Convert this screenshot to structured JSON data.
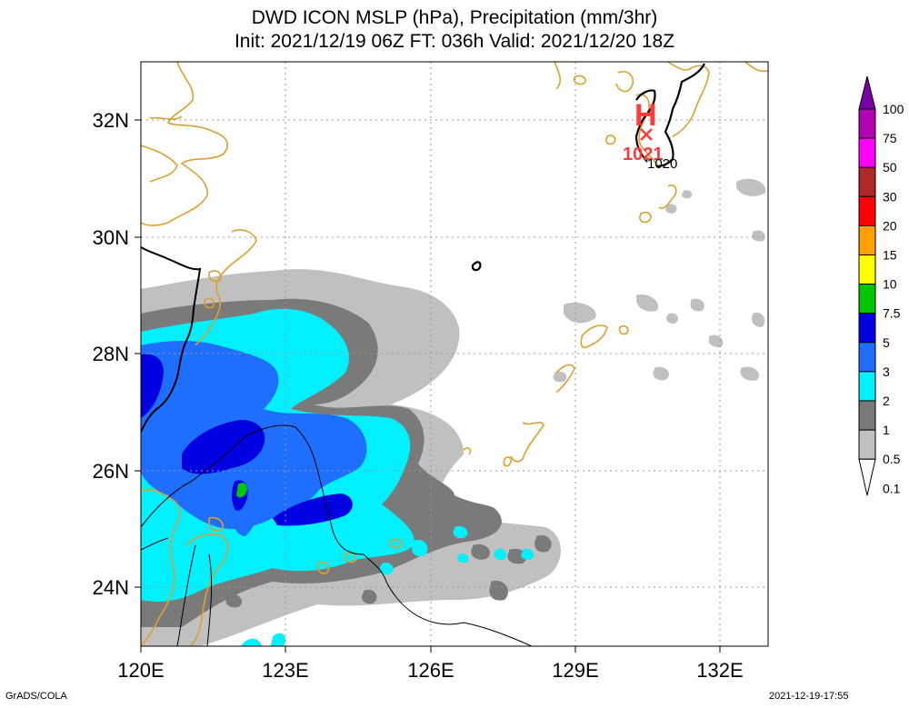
{
  "title_line1": "DWD ICON MSLP (hPa), Precipitation (mm/3hr)",
  "title_line2": "Init: 2021/12/19 06Z  FT: 036h  Valid: 2021/12/20 18Z",
  "footer_left": "GrADS/COLA",
  "footer_right": "2021-12-19-17:55",
  "map": {
    "lon_labels": [
      "120E",
      "123E",
      "126E",
      "129E",
      "132E"
    ],
    "lat_labels": [
      "32N",
      "30N",
      "28N",
      "26N",
      "24N"
    ],
    "high_label": "H",
    "high_value": "1021",
    "isobar_label": "1020"
  },
  "colorbar": {
    "labels": [
      "100",
      "75",
      "50",
      "30",
      "20",
      "15",
      "10",
      "7.5",
      "5",
      "3",
      "2",
      "1",
      "0.5",
      "0.1"
    ],
    "colors": [
      "#7a00a8",
      "#b400b4",
      "#ff00ff",
      "#b02828",
      "#ff0000",
      "#ffa000",
      "#ffff00",
      "#00c800",
      "#0000e0",
      "#1e6eff",
      "#00f0ff",
      "#7a7a7a",
      "#c0c0c0"
    ]
  }
}
